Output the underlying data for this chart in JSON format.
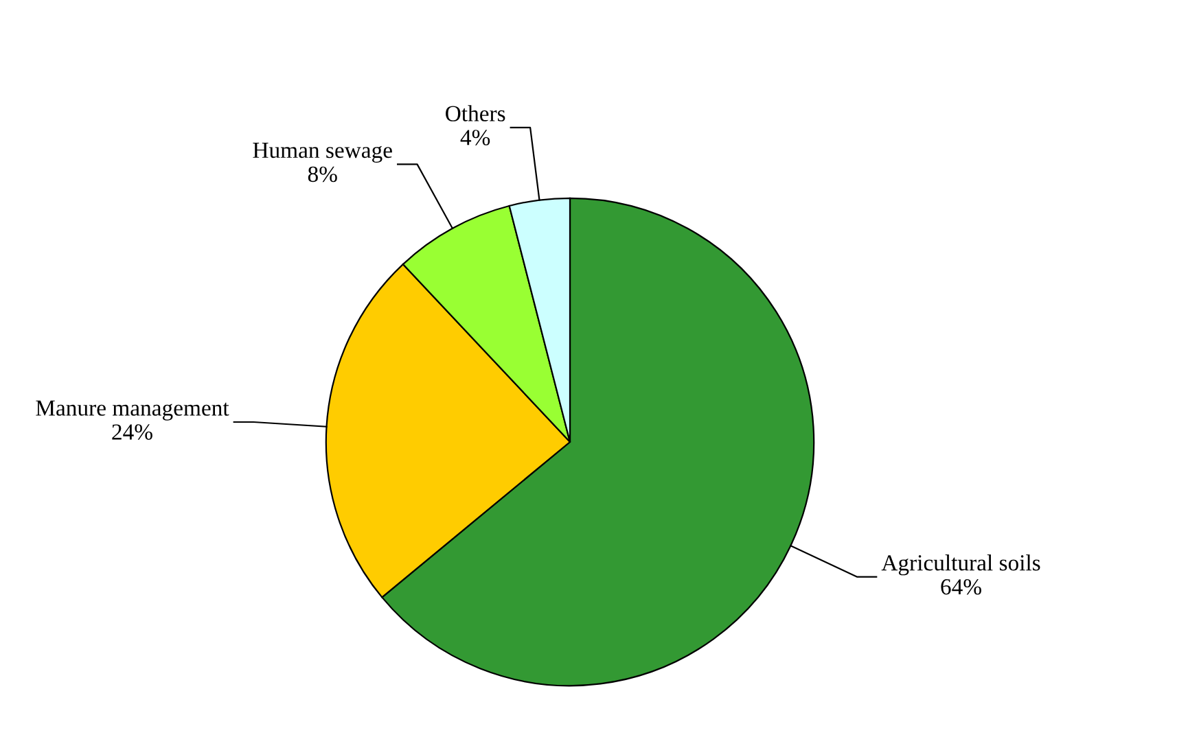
{
  "chart_data": {
    "type": "pie",
    "categories": [
      "Agricultural soils",
      "Manure management",
      "Human sewage",
      "Others"
    ],
    "values": [
      64,
      24,
      8,
      4
    ],
    "colors": [
      "#339933",
      "#ffcc00",
      "#99ff33",
      "#ccffff"
    ],
    "value_labels": [
      "64%",
      "24%",
      "8%",
      "4%"
    ]
  }
}
